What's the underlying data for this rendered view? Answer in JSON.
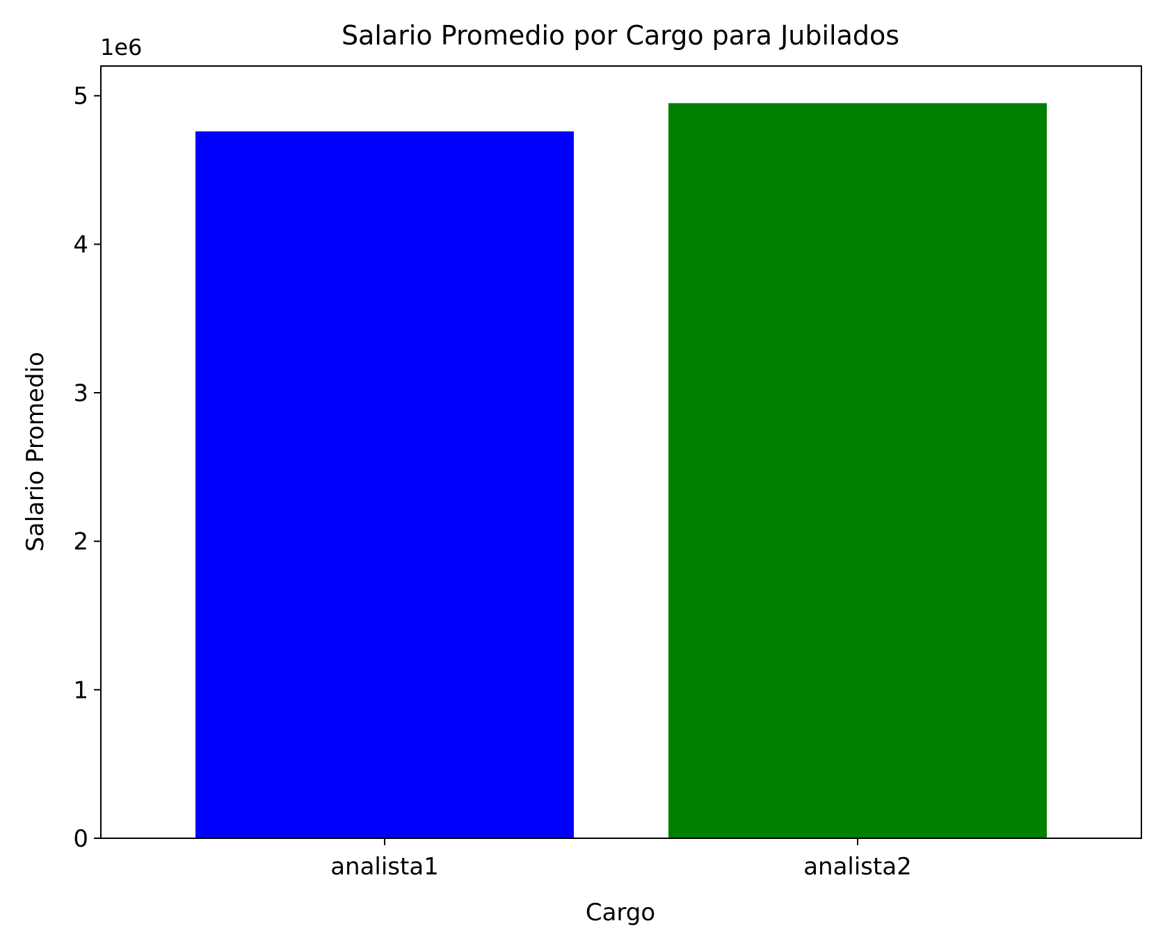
{
  "chart_data": {
    "type": "bar",
    "title": "Salario Promedio por Cargo para Jubilados",
    "xlabel": "Cargo",
    "ylabel": "Salario Promedio",
    "y_offset_label": "1e6",
    "y_scale": 1000000,
    "categories": [
      "analista1",
      "analista2"
    ],
    "values": [
      4760000,
      4950000
    ],
    "colors": [
      "#0000ff",
      "#008000"
    ],
    "ylim": [
      0,
      5200000
    ],
    "yticks": [
      0,
      1000000,
      2000000,
      3000000,
      4000000,
      5000000
    ],
    "ytick_labels": [
      "0",
      "1",
      "2",
      "3",
      "4",
      "5"
    ],
    "grid": false,
    "legend": "none"
  }
}
